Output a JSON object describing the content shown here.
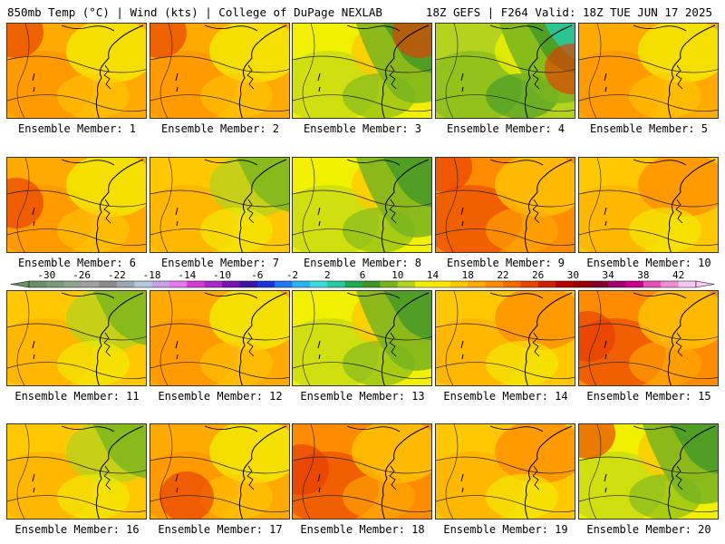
{
  "header": {
    "left": "850mb Temp (°C) | Wind (kts) | College of DuPage NEXLAB",
    "right": "18Z GEFS | F264 Valid: 18Z TUE JUN 17 2025"
  },
  "members": [
    {
      "label": "Ensemble Member: 1",
      "theme": "warm",
      "hot": "nw"
    },
    {
      "label": "Ensemble Member: 2",
      "theme": "warm",
      "hot": "nw"
    },
    {
      "label": "Ensemble Member: 3",
      "theme": "greenish",
      "hot": "ne"
    },
    {
      "label": "Ensemble Member: 4",
      "theme": "green",
      "hot": "e"
    },
    {
      "label": "Ensemble Member: 5",
      "theme": "warm",
      "hot": "none"
    },
    {
      "label": "Ensemble Member: 6",
      "theme": "warm",
      "hot": "w"
    },
    {
      "label": "Ensemble Member: 7",
      "theme": "mixed",
      "hot": "none"
    },
    {
      "label": "Ensemble Member: 8",
      "theme": "greenish",
      "hot": "none"
    },
    {
      "label": "Ensemble Member: 9",
      "theme": "hot",
      "hot": "nw"
    },
    {
      "label": "Ensemble Member: 10",
      "theme": "yellow",
      "hot": "none"
    },
    {
      "label": "Ensemble Member: 11",
      "theme": "mixed",
      "hot": "none"
    },
    {
      "label": "Ensemble Member: 12",
      "theme": "warm",
      "hot": "none"
    },
    {
      "label": "Ensemble Member: 13",
      "theme": "greenish",
      "hot": "none"
    },
    {
      "label": "Ensemble Member: 14",
      "theme": "yellow",
      "hot": "none"
    },
    {
      "label": "Ensemble Member: 15",
      "theme": "hot",
      "hot": "w"
    },
    {
      "label": "Ensemble Member: 16",
      "theme": "mixed",
      "hot": "none"
    },
    {
      "label": "Ensemble Member: 17",
      "theme": "warm",
      "hot": "sw"
    },
    {
      "label": "Ensemble Member: 18",
      "theme": "hot",
      "hot": "w"
    },
    {
      "label": "Ensemble Member: 19",
      "theme": "yellow",
      "hot": "none"
    },
    {
      "label": "Ensemble Member: 20",
      "theme": "greenish",
      "hot": "nw"
    }
  ],
  "colorbar": {
    "ticks": [
      "-30",
      "-26",
      "-22",
      "-18",
      "-14",
      "-10",
      "-6",
      "-2",
      "2",
      "6",
      "10",
      "14",
      "18",
      "22",
      "26",
      "30",
      "34",
      "38",
      "42"
    ],
    "colors": [
      "#6b8e6b",
      "#7d997d",
      "#8fa48f",
      "#a0a0a0",
      "#8c8c8c",
      "#9aa8b4",
      "#b4c8dc",
      "#c8a0e6",
      "#e678f0",
      "#d23cd2",
      "#aa28c8",
      "#7814b4",
      "#3c14a0",
      "#1e32dc",
      "#1e78f0",
      "#28b4f0",
      "#3cdcdc",
      "#28c8a0",
      "#1eaa50",
      "#3c9628",
      "#78b41e",
      "#b4d21e",
      "#f0f000",
      "#ffe600",
      "#ffc800",
      "#ffaa00",
      "#ff8c00",
      "#f06e00",
      "#e64600",
      "#d21e00",
      "#b40000",
      "#960000",
      "#820028",
      "#a0006e",
      "#c8008c",
      "#e650b4",
      "#f08cd2",
      "#f5c8f0"
    ],
    "colorsUnit": "°C"
  },
  "palette": {
    "hot": "#e63c00",
    "orange": "#ff8c00",
    "amber": "#ffaa00",
    "gold": "#ffc800",
    "yellow": "#f0f000",
    "lime": "#b4d21e",
    "green": "#78b41e",
    "dkgreen": "#3c9628",
    "teal": "#28c8a0"
  }
}
